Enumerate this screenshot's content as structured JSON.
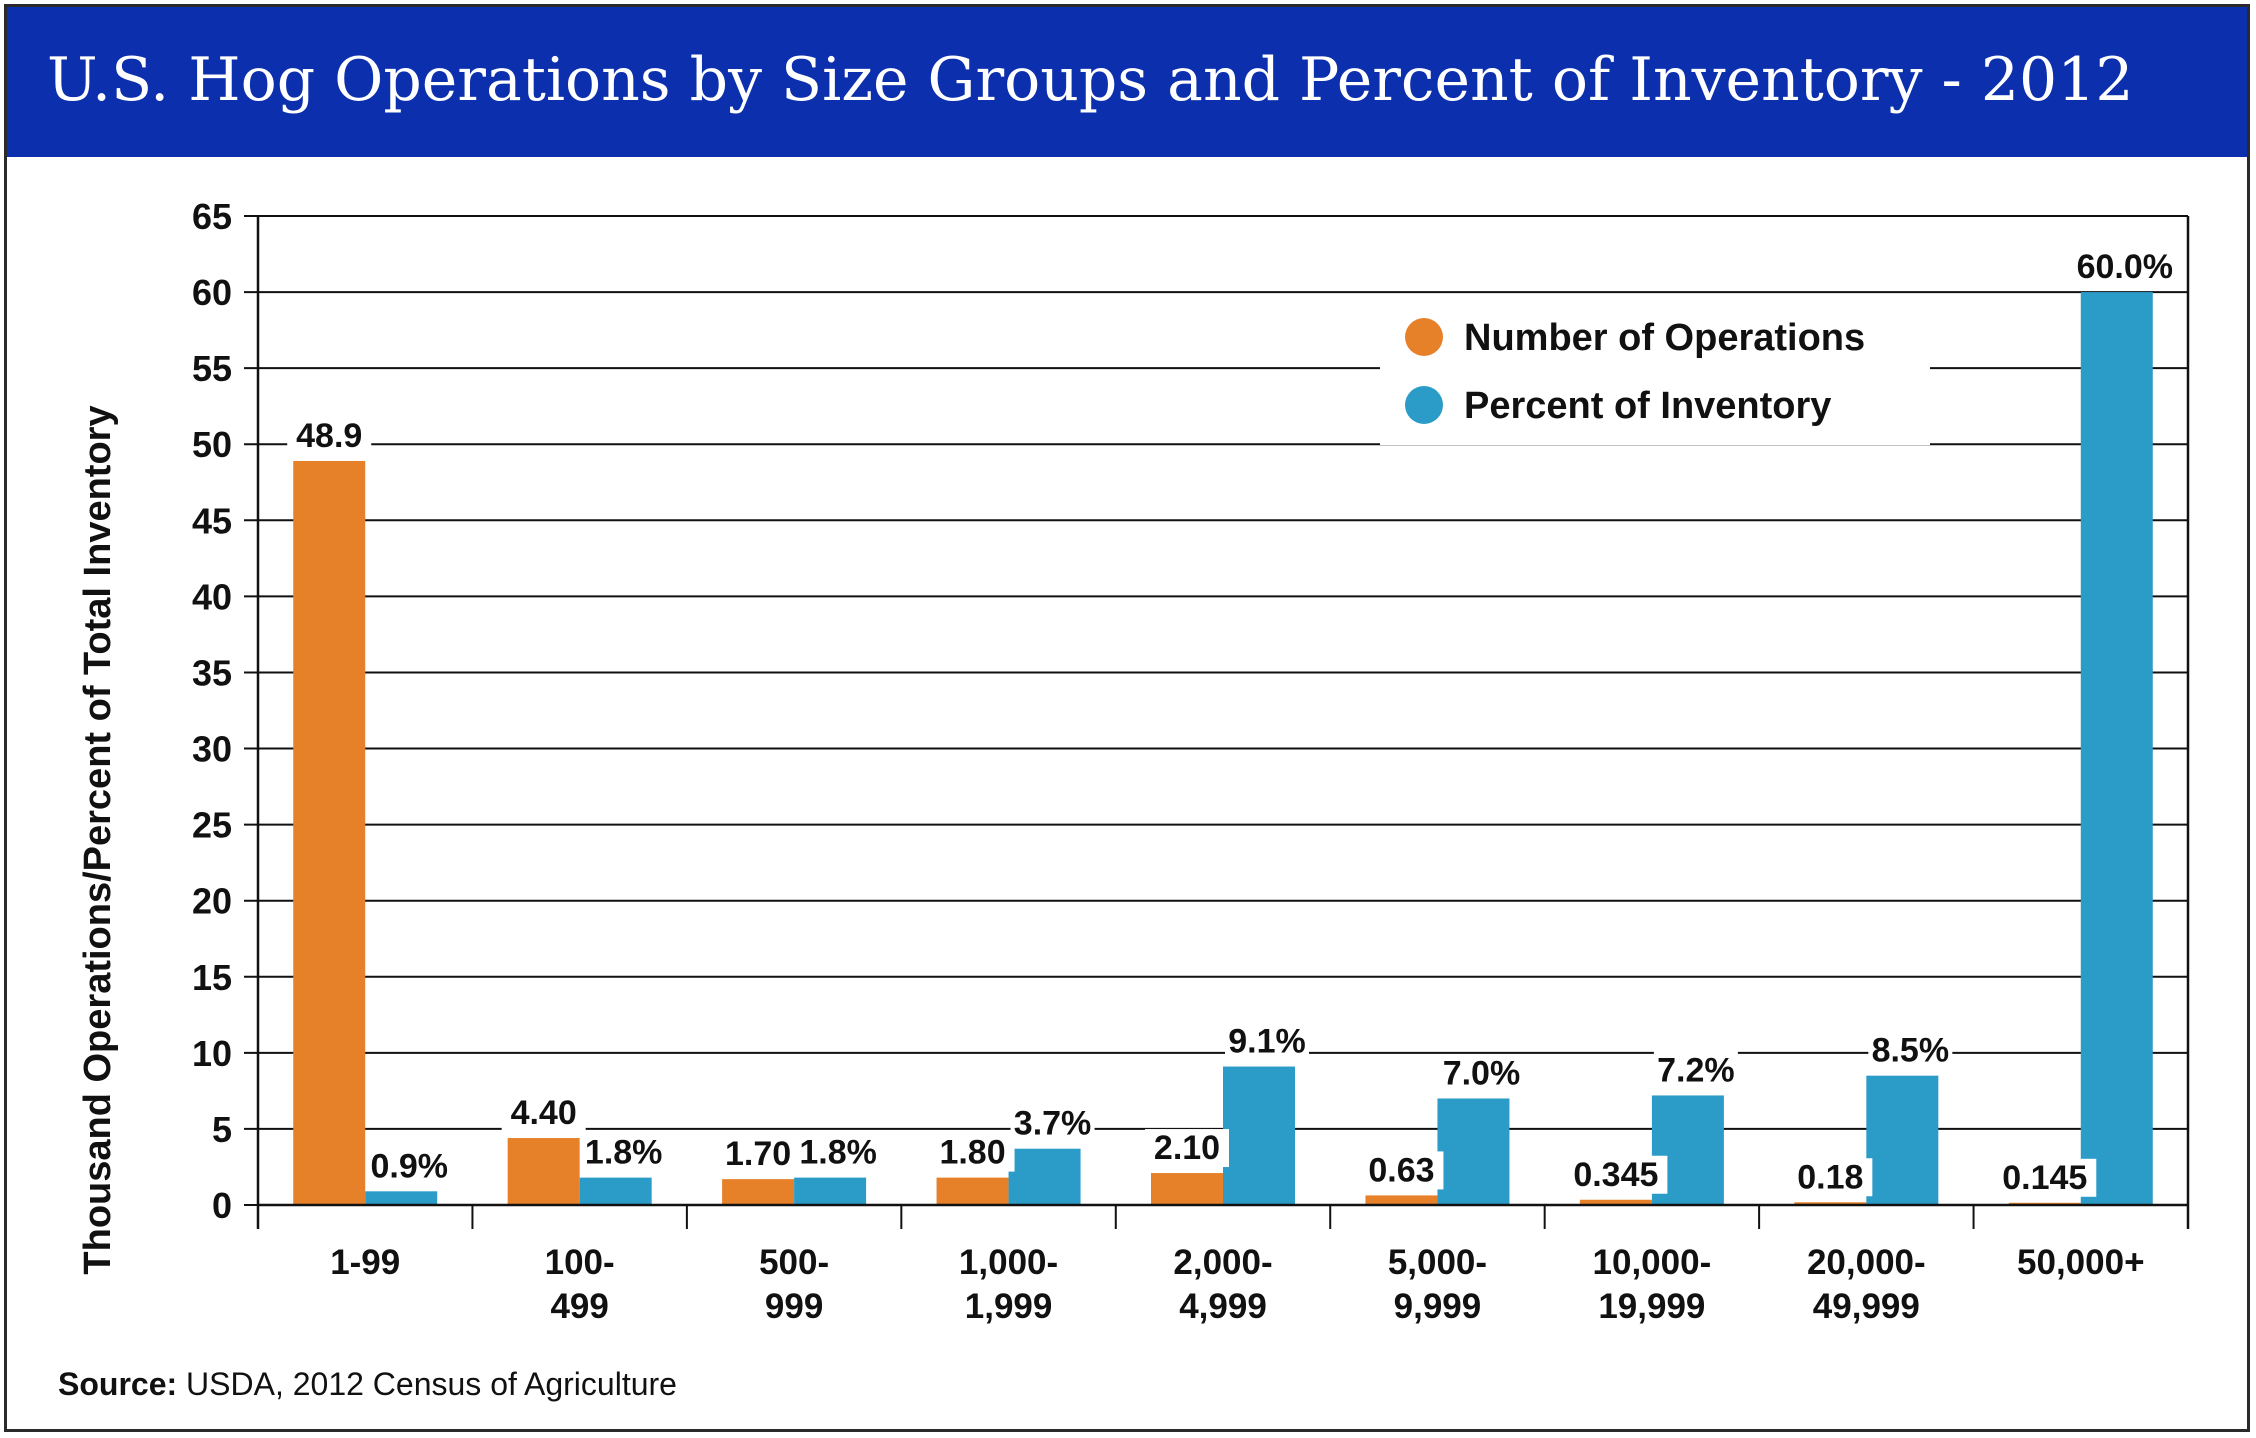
{
  "colors": {
    "title_bar": "#0b2fad",
    "operations": "#e6812a",
    "inventory": "#2b9bc8"
  },
  "source": {
    "label": "Source:",
    "text": "USDA, 2012 Census of Agriculture"
  },
  "chart_data": {
    "type": "bar",
    "title": "U.S. Hog Operations by Size Groups and Percent of Inventory - 2012",
    "ylabel": "Thousand Operations/Percent of Total Inventory",
    "xlabel": "",
    "ylim": [
      0,
      65
    ],
    "yticks": [
      0,
      5,
      10,
      15,
      20,
      25,
      30,
      35,
      40,
      45,
      50,
      55,
      60,
      65
    ],
    "grid": true,
    "legend_position": "top-right",
    "categories": [
      [
        "1-99"
      ],
      [
        "100-",
        "499"
      ],
      [
        "500-",
        "999"
      ],
      [
        "1,000-",
        "1,999"
      ],
      [
        "2,000-",
        "4,999"
      ],
      [
        "5,000-",
        "9,999"
      ],
      [
        "10,000-",
        "19,999"
      ],
      [
        "20,000-",
        "49,999"
      ],
      [
        "50,000+"
      ]
    ],
    "series": [
      {
        "name": "Number of Operations",
        "color": "#e6812a",
        "values": [
          48.9,
          4.4,
          1.7,
          1.8,
          2.1,
          0.63,
          0.345,
          0.18,
          0.145
        ],
        "labels": [
          "48.9",
          "4.40",
          "1.70",
          "1.80",
          "2.10",
          "0.63",
          "0.345",
          "0.18",
          "0.145"
        ]
      },
      {
        "name": "Percent of Inventory",
        "color": "#2b9bc8",
        "values": [
          0.9,
          1.8,
          1.8,
          3.7,
          9.1,
          7.0,
          7.2,
          8.5,
          60.0
        ],
        "labels": [
          "0.9%",
          "1.8%",
          "1.8%",
          "3.7%",
          "9.1%",
          "7.0%",
          "7.2%",
          "8.5%",
          "60.0%"
        ]
      }
    ]
  }
}
